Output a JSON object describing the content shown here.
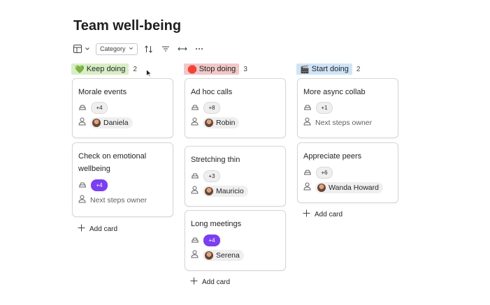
{
  "page": {
    "title": "Team well-being"
  },
  "toolbar": {
    "layout_icon": "board-layout-icon",
    "category_label": "Category",
    "sort_icon": "sort-icon",
    "filter_icon": "filter-icon",
    "expand_icon": "horizontal-resize-icon",
    "more_icon": "more-icon"
  },
  "columns": [
    {
      "label": "Keep doing",
      "emoji": "💚",
      "count": "2",
      "tag_color": "#d8efc6",
      "cards": [
        {
          "title": "Morale events",
          "reactions": "+4",
          "reactions_highlight": false,
          "owner": "Daniela",
          "owner_is_person": true
        },
        {
          "title": "Check on emotional wellbeing",
          "reactions": "+4",
          "reactions_highlight": true,
          "owner": "Next steps owner",
          "owner_is_person": false
        }
      ],
      "add_label": "Add card"
    },
    {
      "label": "Stop doing",
      "emoji": "🛑",
      "count": "3",
      "tag_color": "#f1c7c7",
      "cards": [
        {
          "title": "Ad hoc calls",
          "reactions": "+8",
          "reactions_highlight": false,
          "owner": "Robin",
          "owner_is_person": true
        },
        {
          "title": "Stretching thin",
          "reactions": "+3",
          "reactions_highlight": false,
          "owner": "Mauricio",
          "owner_is_person": true
        },
        {
          "title": "Long meetings",
          "reactions": "+4",
          "reactions_highlight": true,
          "owner": "Serena",
          "owner_is_person": true
        }
      ],
      "add_label": "Add card"
    },
    {
      "label": "Start doing",
      "emoji": "🎬",
      "count": "2",
      "tag_color": "#cfe4f7",
      "cards": [
        {
          "title": "More async collab",
          "reactions": "+1",
          "reactions_highlight": false,
          "owner": "Next steps owner",
          "owner_is_person": false
        },
        {
          "title": "Appreciate peers",
          "reactions": "+6",
          "reactions_highlight": false,
          "owner": "Wanda Howard",
          "owner_is_person": true
        }
      ],
      "add_label": "Add card"
    }
  ]
}
